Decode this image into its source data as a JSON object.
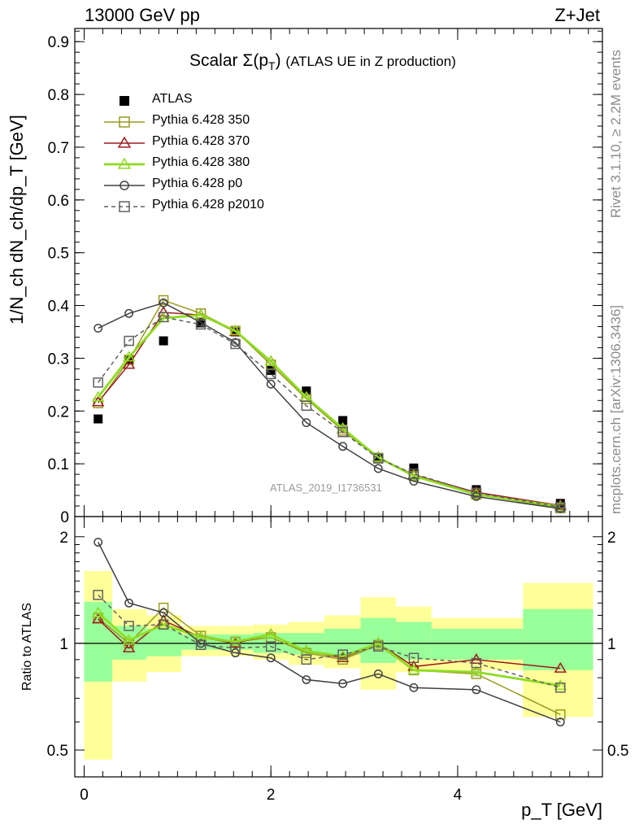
{
  "header": {
    "left": "13000 GeV pp",
    "right": "Z+Jet"
  },
  "side_texts": {
    "rivet": "Rivet 3.1.10, ≥ 2.2M events",
    "mcplots": "mcplots.cern.ch [arXiv:1306.3436]"
  },
  "watermark": "ATLAS_2019_I1736531",
  "main_title": {
    "prefix": "Scalar Σ(p",
    "sub": "T",
    "suffix": ")",
    "rest": "(ATLAS UE in Z production)"
  },
  "y_axis_main_label": "1/N_ch dN_ch/dp_T [GeV]",
  "y_axis_ratio_label": "Ratio to ATLAS",
  "x_axis_label": "p_T [GeV]",
  "colors": {
    "atlas": "#000000",
    "p350": "#9a9a22",
    "p370": "#9b1b1b",
    "p380": "#8fdb22",
    "p0": "#404040",
    "p2010": "#606060",
    "band_yellow": "#ffff99",
    "band_green": "#99ff99"
  },
  "chart_data": [
    {
      "type": "scatter",
      "panel": "main",
      "xlabel": "p_T [GeV]",
      "ylabel": "1/N_ch dN_ch/dp_T [GeV]",
      "xlim": [
        -0.1,
        5.55
      ],
      "ylim": [
        0,
        0.925
      ],
      "yticks": [
        0,
        0.1,
        0.2,
        0.3,
        0.4,
        0.5,
        0.6,
        0.7,
        0.8,
        0.9
      ],
      "x": [
        0.15,
        0.48,
        0.85,
        1.25,
        1.62,
        2.0,
        2.38,
        2.77,
        3.15,
        3.53,
        4.2,
        5.1
      ],
      "series": [
        {
          "name": "ATLAS",
          "marker": "square-filled",
          "color": "#000000",
          "line": "none",
          "values": [
            0.185,
            0.297,
            0.333,
            0.367,
            0.35,
            0.277,
            0.238,
            0.182,
            0.112,
            0.092,
            0.051,
            0.025
          ]
        },
        {
          "name": "Pythia 6.428 350",
          "marker": "square-open",
          "color": "#9a9a22",
          "line": "solid",
          "values": [
            0.215,
            0.297,
            0.41,
            0.385,
            0.352,
            0.288,
            0.223,
            0.163,
            0.111,
            0.077,
            0.042,
            0.016
          ]
        },
        {
          "name": "Pythia 6.428 370",
          "marker": "triangle-open",
          "color": "#9b1b1b",
          "line": "solid",
          "values": [
            0.217,
            0.288,
            0.387,
            0.382,
            0.35,
            0.294,
            0.226,
            0.166,
            0.112,
            0.079,
            0.046,
            0.021
          ]
        },
        {
          "name": "Pythia 6.428 380",
          "marker": "triangle-open",
          "color": "#8fdb22",
          "line": "solid-thick",
          "values": [
            0.226,
            0.302,
            0.376,
            0.382,
            0.352,
            0.294,
            0.226,
            0.167,
            0.112,
            0.077,
            0.042,
            0.019
          ]
        },
        {
          "name": "Pythia 6.428 p0",
          "marker": "circle-open",
          "color": "#404040",
          "line": "solid",
          "values": [
            0.357,
            0.385,
            0.405,
            0.368,
            0.33,
            0.251,
            0.178,
            0.133,
            0.091,
            0.067,
            0.038,
            0.015
          ]
        },
        {
          "name": "Pythia 6.428 p2010",
          "marker": "square-open",
          "color": "#606060",
          "line": "dashed",
          "values": [
            0.254,
            0.333,
            0.378,
            0.364,
            0.327,
            0.27,
            0.21,
            0.16,
            0.11,
            0.081,
            0.045,
            0.018
          ]
        }
      ]
    },
    {
      "type": "scatter",
      "panel": "ratio",
      "xlabel": "p_T [GeV]",
      "ylabel": "Ratio to ATLAS",
      "xlim": [
        -0.1,
        5.55
      ],
      "ylim": [
        0.42,
        2.28
      ],
      "yscale": "log",
      "yticks": [
        0.5,
        1,
        2
      ],
      "xticks": [
        0,
        2,
        4
      ],
      "x": [
        0.15,
        0.48,
        0.85,
        1.25,
        1.62,
        2.0,
        2.38,
        2.77,
        3.15,
        3.53,
        4.2,
        5.1
      ],
      "bins": [
        [
          0.0,
          0.3
        ],
        [
          0.3,
          0.67
        ],
        [
          0.67,
          1.04
        ],
        [
          1.04,
          1.43
        ],
        [
          1.43,
          1.81
        ],
        [
          1.81,
          2.19
        ],
        [
          2.19,
          2.57
        ],
        [
          2.57,
          2.96
        ],
        [
          2.96,
          3.34
        ],
        [
          3.34,
          3.72
        ],
        [
          3.72,
          4.7
        ],
        [
          4.7,
          5.45
        ]
      ],
      "bands": {
        "yellow": [
          [
            0.47,
            1.6
          ],
          [
            0.78,
            1.25
          ],
          [
            0.83,
            1.2
          ],
          [
            0.92,
            1.12
          ],
          [
            0.92,
            1.12
          ],
          [
            0.9,
            1.13
          ],
          [
            0.87,
            1.15
          ],
          [
            0.85,
            1.2
          ],
          [
            0.74,
            1.35
          ],
          [
            0.83,
            1.27
          ],
          [
            0.84,
            1.18
          ],
          [
            0.62,
            1.48
          ]
        ],
        "green": [
          [
            0.78,
            1.31
          ],
          [
            0.9,
            1.12
          ],
          [
            0.92,
            1.1
          ],
          [
            0.96,
            1.06
          ],
          [
            0.96,
            1.06
          ],
          [
            0.94,
            1.07
          ],
          [
            0.93,
            1.07
          ],
          [
            0.93,
            1.1
          ],
          [
            0.88,
            1.18
          ],
          [
            0.9,
            1.15
          ],
          [
            0.9,
            1.1
          ],
          [
            0.84,
            1.25
          ]
        ]
      },
      "series": [
        {
          "name": "Pythia 6.428 350",
          "color": "#9a9a22",
          "marker": "square-open",
          "line": "solid",
          "values": [
            1.18,
            1.0,
            1.26,
            1.05,
            1.01,
            1.04,
            0.94,
            0.9,
            0.99,
            0.84,
            0.82,
            0.63
          ]
        },
        {
          "name": "Pythia 6.428 370",
          "color": "#9b1b1b",
          "marker": "triangle-open",
          "line": "solid",
          "values": [
            1.17,
            0.97,
            1.16,
            1.04,
            1.0,
            1.06,
            0.95,
            0.91,
            1.0,
            0.86,
            0.9,
            0.85
          ]
        },
        {
          "name": "Pythia 6.428 380",
          "color": "#8fdb22",
          "marker": "triangle-open",
          "line": "solid-thick",
          "values": [
            1.22,
            1.02,
            1.13,
            1.04,
            1.01,
            1.06,
            0.95,
            0.92,
            1.0,
            0.84,
            0.83,
            0.76
          ]
        },
        {
          "name": "Pythia 6.428 p0",
          "color": "#404040",
          "marker": "circle-open",
          "line": "solid",
          "values": [
            1.93,
            1.3,
            1.22,
            1.0,
            0.94,
            0.91,
            0.79,
            0.77,
            0.82,
            0.75,
            0.74,
            0.6
          ]
        },
        {
          "name": "Pythia 6.428 p2010",
          "color": "#606060",
          "marker": "square-open",
          "line": "dashed",
          "values": [
            1.37,
            1.12,
            1.13,
            0.99,
            0.97,
            0.98,
            0.9,
            0.93,
            0.98,
            0.91,
            0.88,
            0.75
          ]
        }
      ]
    }
  ]
}
